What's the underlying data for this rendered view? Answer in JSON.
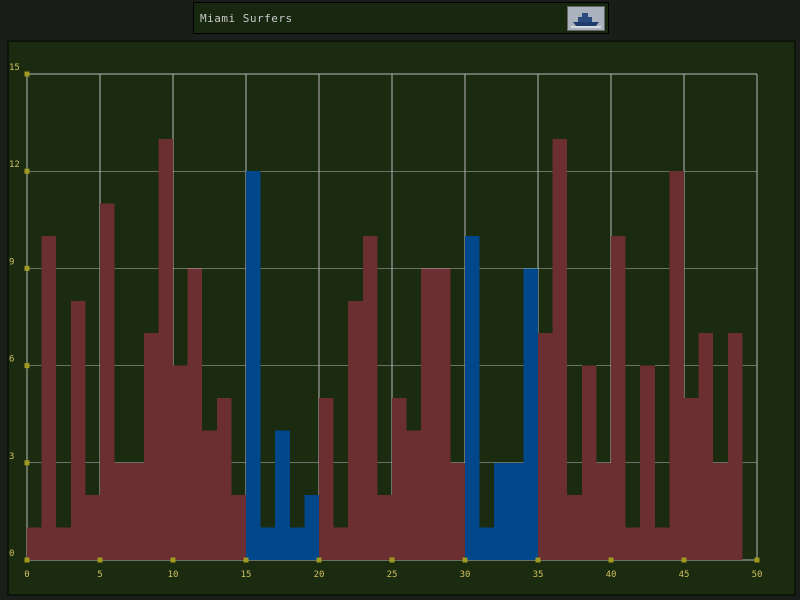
{
  "header": {
    "title": "Miami Surfers",
    "logo_icon": "ship-logo-icon"
  },
  "colors": {
    "background": "#1b1d1b",
    "plot_bg": "#1a2b0f",
    "grid": "#b8b8b8",
    "bar_default": "#6b2e31",
    "bar_highlight": "#00478c",
    "tick_marker": "#a09a20",
    "tick_label": "#d0c060"
  },
  "chart_data": {
    "type": "bar",
    "title": "Miami Surfers",
    "xlabel": "",
    "ylabel": "",
    "xlim": [
      0,
      50
    ],
    "ylim": [
      0,
      15
    ],
    "x_ticks": [
      0,
      5,
      10,
      15,
      20,
      25,
      30,
      35,
      40,
      45,
      50
    ],
    "y_ticks": [
      0,
      3,
      6,
      9,
      12,
      15
    ],
    "grid": true,
    "bar_width": 1,
    "values": [
      1,
      10,
      1,
      8,
      2,
      11,
      3,
      3,
      7,
      13,
      6,
      9,
      4,
      5,
      2,
      12,
      1,
      4,
      1,
      2,
      5,
      1,
      8,
      10,
      2,
      5,
      4,
      9,
      9,
      3,
      10,
      1,
      3,
      3,
      9,
      7,
      13,
      2,
      6,
      3,
      10,
      1,
      6,
      1,
      12,
      5,
      7,
      3,
      7
    ],
    "highlight_ranges": [
      [
        15,
        20
      ],
      [
        30,
        35
      ]
    ]
  }
}
